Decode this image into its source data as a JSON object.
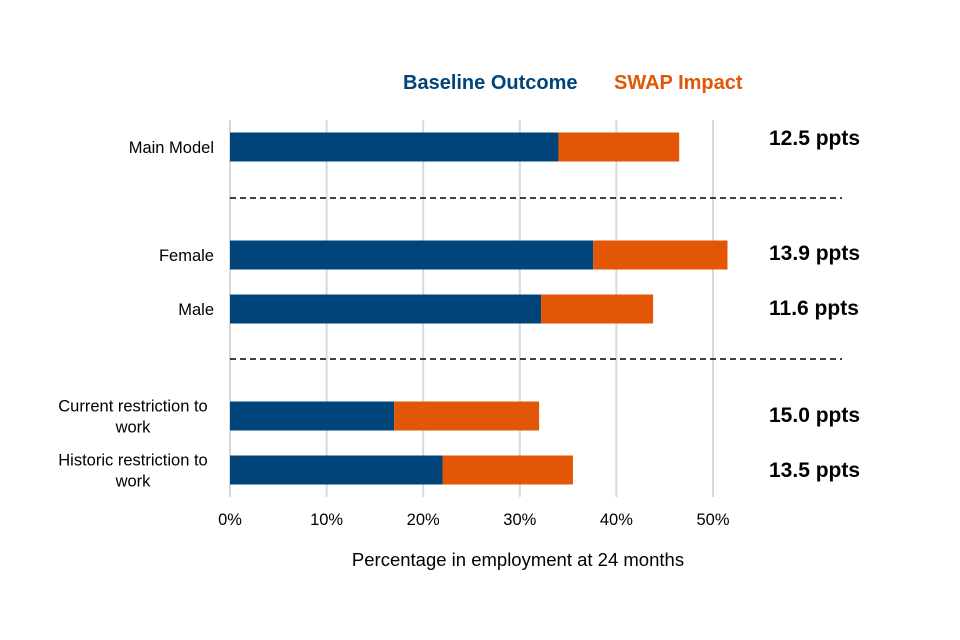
{
  "chart_data": {
    "type": "bar",
    "orientation": "horizontal",
    "stacked": true,
    "title": "",
    "xlabel": "Percentage in employment at 24 months",
    "ylabel": "",
    "xlim": [
      0,
      50
    ],
    "x_ticks": [
      0,
      10,
      20,
      30,
      40,
      50
    ],
    "x_tick_labels": [
      "0%",
      "10%",
      "20%",
      "30%",
      "40%",
      "50%"
    ],
    "grid": "vertical",
    "legend": {
      "placement": "top",
      "entries": [
        "Baseline Outcome",
        "SWAP Impact"
      ]
    },
    "categories": [
      [
        "Main Model"
      ],
      [
        "Female"
      ],
      [
        "Male"
      ],
      [
        "Current restriction to",
        "work"
      ],
      [
        "Historic restriction to",
        "work"
      ]
    ],
    "category_groups": [
      [
        0
      ],
      [
        1,
        2
      ],
      [
        3,
        4
      ]
    ],
    "series": [
      {
        "name": "Baseline Outcome",
        "color": "#01447A",
        "values": [
          34.0,
          37.6,
          32.2,
          17.0,
          22.0
        ]
      },
      {
        "name": "SWAP Impact",
        "color": "#E25606",
        "values": [
          12.5,
          13.9,
          11.6,
          15.0,
          13.5
        ]
      }
    ],
    "annotations": [
      "12.5 ppts",
      "13.9 ppts",
      "11.6 ppts",
      "15.0 ppts",
      "13.5 ppts"
    ],
    "separators": "dashed lines between groups"
  }
}
